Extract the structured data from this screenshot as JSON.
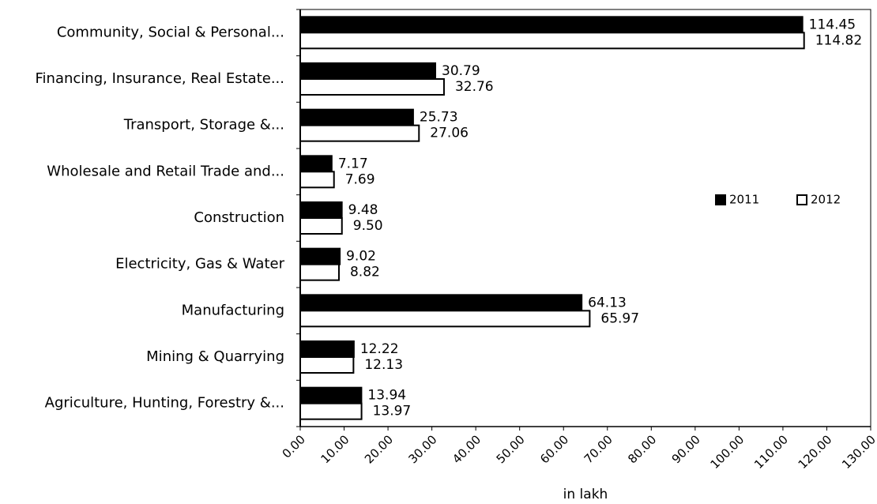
{
  "chart_data": {
    "type": "bar",
    "orientation": "horizontal",
    "x_label": "in lakh",
    "categories": [
      "Community, Social & Personal...",
      "Financing, Insurance, Real Estate...",
      "Transport, Storage &...",
      "Wholesale and Retail Trade and...",
      "Construction",
      "Electricity, Gas & Water",
      "Manufacturing",
      "Mining & Quarrying",
      "Agriculture, Hunting, Forestry &..."
    ],
    "series": [
      {
        "name": "2011",
        "color": "#000000",
        "values": [
          114.45,
          30.79,
          25.73,
          7.17,
          9.48,
          9.02,
          64.13,
          12.22,
          13.94
        ],
        "value_labels": [
          "114.45",
          "30.79",
          "25.73",
          "7.17",
          "9.48",
          "9.02",
          "64.13",
          "12.22",
          "13.94"
        ]
      },
      {
        "name": "2012",
        "color": "#ffffff",
        "values": [
          114.82,
          32.76,
          27.06,
          7.69,
          9.5,
          8.82,
          65.97,
          12.13,
          13.97
        ],
        "value_labels": [
          "114.82",
          "32.76",
          "27.06",
          "7.69",
          "9.50",
          "8.82",
          "65.97",
          "12.13",
          "13.97"
        ]
      }
    ],
    "xlim": [
      0,
      130
    ],
    "xticks": [
      {
        "value": 0,
        "label": "0.00"
      },
      {
        "value": 10,
        "label": "10.00"
      },
      {
        "value": 20,
        "label": "20.00"
      },
      {
        "value": 30,
        "label": "30.00"
      },
      {
        "value": 40,
        "label": "40.00"
      },
      {
        "value": 50,
        "label": "50.00"
      },
      {
        "value": 60,
        "label": "60.00"
      },
      {
        "value": 70,
        "label": "70.00"
      },
      {
        "value": 80,
        "label": "80.00"
      },
      {
        "value": 90,
        "label": "90.00"
      },
      {
        "value": 100,
        "label": "100.00"
      },
      {
        "value": 110,
        "label": "110.00"
      },
      {
        "value": 120,
        "label": "120.00"
      },
      {
        "value": 130,
        "label": "130.00"
      }
    ],
    "legend": "right",
    "grid": false
  }
}
